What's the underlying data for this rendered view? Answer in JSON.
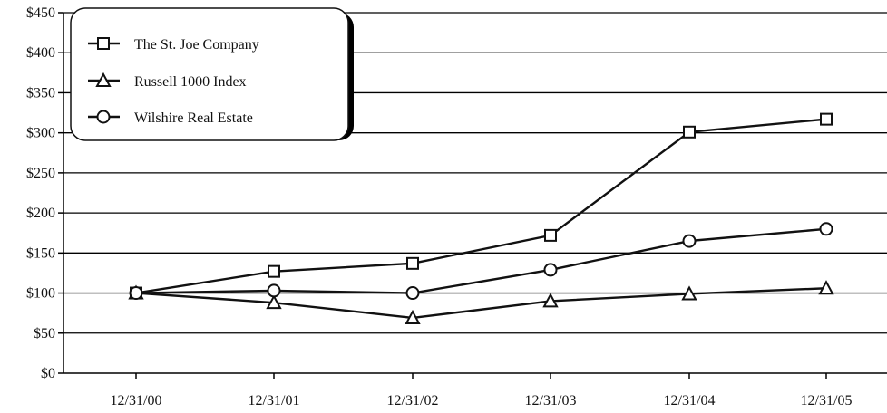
{
  "chart_data": {
    "type": "line",
    "categories": [
      "12/31/00",
      "12/31/01",
      "12/31/02",
      "12/31/03",
      "12/31/04",
      "12/31/05"
    ],
    "series": [
      {
        "name": "The St. Joe Company",
        "marker": "square",
        "values": [
          100,
          127,
          137,
          172,
          301,
          317
        ]
      },
      {
        "name": "Russell 1000 Index",
        "marker": "triangle",
        "values": [
          100,
          88,
          69,
          90,
          99,
          106
        ]
      },
      {
        "name": "Wilshire Real Estate",
        "marker": "circle",
        "values": [
          100,
          103,
          100,
          129,
          165,
          180
        ]
      }
    ],
    "ylim": [
      0,
      450
    ],
    "yticks": [
      0,
      50,
      100,
      150,
      200,
      250,
      300,
      350,
      400,
      450
    ],
    "ytick_labels": [
      "$0",
      "$50",
      "$100",
      "$150",
      "$200",
      "$250",
      "$300",
      "$350",
      "$400",
      "$450"
    ],
    "grid": "horizontal",
    "legend_position": "top-left",
    "colors": {
      "line": "#111111",
      "marker_fill": "#ffffff",
      "grid": "#000000"
    }
  }
}
